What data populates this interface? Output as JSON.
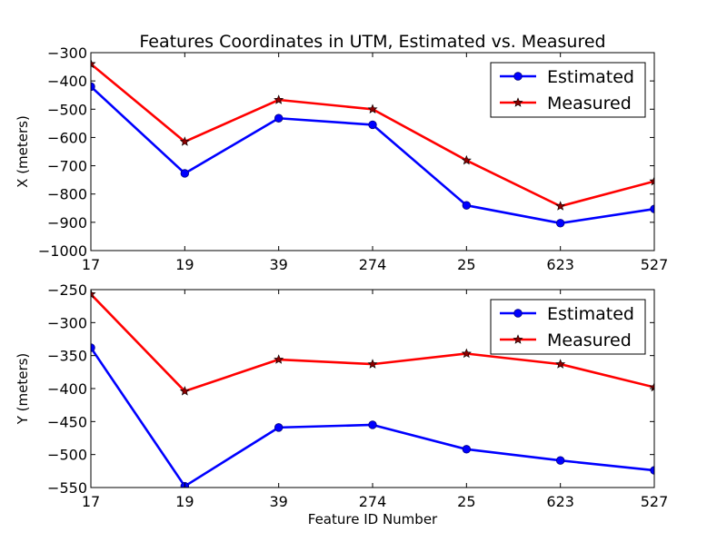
{
  "figure_title": "Features Coordinates in UTM, Estimated vs. Measured",
  "colors": {
    "estimated": "#0000ff",
    "measured": "#ff0000",
    "marker_measured_fill": "#8b0000"
  },
  "chart_data": [
    {
      "type": "line",
      "title": "Features Coordinates in UTM, Estimated vs. Measured",
      "xlabel": "",
      "ylabel": "X (meters)",
      "categories": [
        "17",
        "19",
        "39",
        "274",
        "25",
        "623",
        "527"
      ],
      "ylim": [
        -1000,
        -300
      ],
      "yticks": [
        -1000,
        -900,
        -800,
        -700,
        -600,
        -500,
        -400,
        -300
      ],
      "legend": "top-right",
      "series": [
        {
          "name": "Estimated",
          "marker": "circle",
          "values": [
            -420,
            -727,
            -532,
            -555,
            -840,
            -903,
            -853
          ]
        },
        {
          "name": "Measured",
          "marker": "star",
          "values": [
            -340,
            -615,
            -467,
            -500,
            -681,
            -843,
            -755
          ]
        }
      ]
    },
    {
      "type": "line",
      "title": "",
      "xlabel": "Feature ID Number",
      "ylabel": "Y (meters)",
      "categories": [
        "17",
        "19",
        "39",
        "274",
        "25",
        "623",
        "527"
      ],
      "ylim": [
        -550,
        -250
      ],
      "yticks": [
        -550,
        -500,
        -450,
        -400,
        -350,
        -300,
        -250
      ],
      "legend": "top-right",
      "series": [
        {
          "name": "Estimated",
          "marker": "circle",
          "values": [
            -338,
            -548,
            -459,
            -455,
            -492,
            -509,
            -524
          ]
        },
        {
          "name": "Measured",
          "marker": "star",
          "values": [
            -257,
            -404,
            -356,
            -363,
            -347,
            -363,
            -398
          ]
        }
      ]
    }
  ]
}
